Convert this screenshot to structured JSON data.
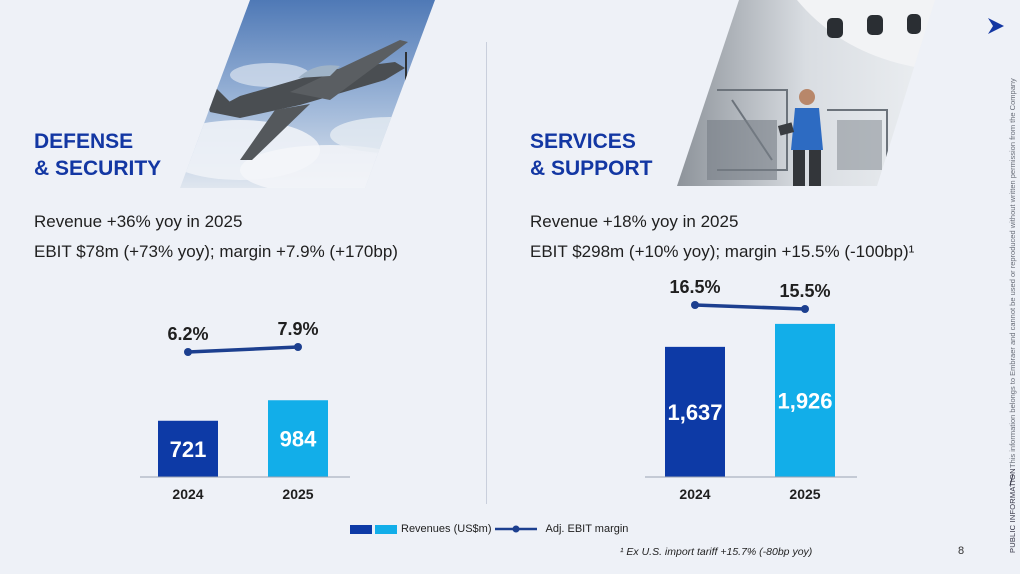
{
  "slide": {
    "page_number": "8",
    "public_label": "PUBLIC INFORMATION",
    "confidential_note": "This information belongs to Embraer and cannot be used or reproduced without written permission from the Company",
    "footnote": "¹ Ex U.S. import tariff +15.7% (-80bp yoy)",
    "colors": {
      "dark_blue": "#0d3aa6",
      "light_blue": "#12aee9",
      "line": "#1c3f8f",
      "title": "#1337a3"
    },
    "icons": [
      "arrow-logo-icon"
    ]
  },
  "defense": {
    "title_line1": "DEFENSE",
    "title_line2": "& SECURITY",
    "revenue_text": "Revenue +36% yoy in 2025",
    "ebit_text": "EBIT $78m (+73% yoy); margin +7.9% (+170bp)"
  },
  "services": {
    "title_line1": "SERVICES",
    "title_line2": "& SUPPORT",
    "revenue_text": "Revenue +18% yoy in 2025",
    "ebit_text": "EBIT $298m (+10% yoy); margin +15.5% (-100bp)¹"
  },
  "legend": {
    "revenues_label": "Revenues (US$m)",
    "margin_label": "Adj. EBIT margin"
  },
  "chart_data": [
    {
      "type": "bar",
      "categories": [
        "2024",
        "2025"
      ],
      "series": [
        {
          "name": "Revenues (US$m)",
          "values": [
            721,
            984
          ],
          "value_labels": [
            "721",
            "984"
          ]
        },
        {
          "name": "Adj. EBIT margin",
          "type": "line",
          "values": [
            6.2,
            7.9
          ],
          "value_labels": [
            "6.2%",
            "7.9%"
          ]
        }
      ],
      "title": "",
      "xlabel": "",
      "ylabel": "",
      "grid": false,
      "legend": "bottom"
    },
    {
      "type": "bar",
      "categories": [
        "2024",
        "2025"
      ],
      "series": [
        {
          "name": "Revenues (US$m)",
          "values": [
            1637,
            1926
          ],
          "value_labels": [
            "1,637",
            "1,926"
          ]
        },
        {
          "name": "Adj. EBIT margin",
          "type": "line",
          "values": [
            16.5,
            15.5
          ],
          "value_labels": [
            "16.5%",
            "15.5%"
          ]
        }
      ],
      "title": "",
      "xlabel": "",
      "ylabel": "",
      "grid": false,
      "legend": "bottom"
    }
  ]
}
